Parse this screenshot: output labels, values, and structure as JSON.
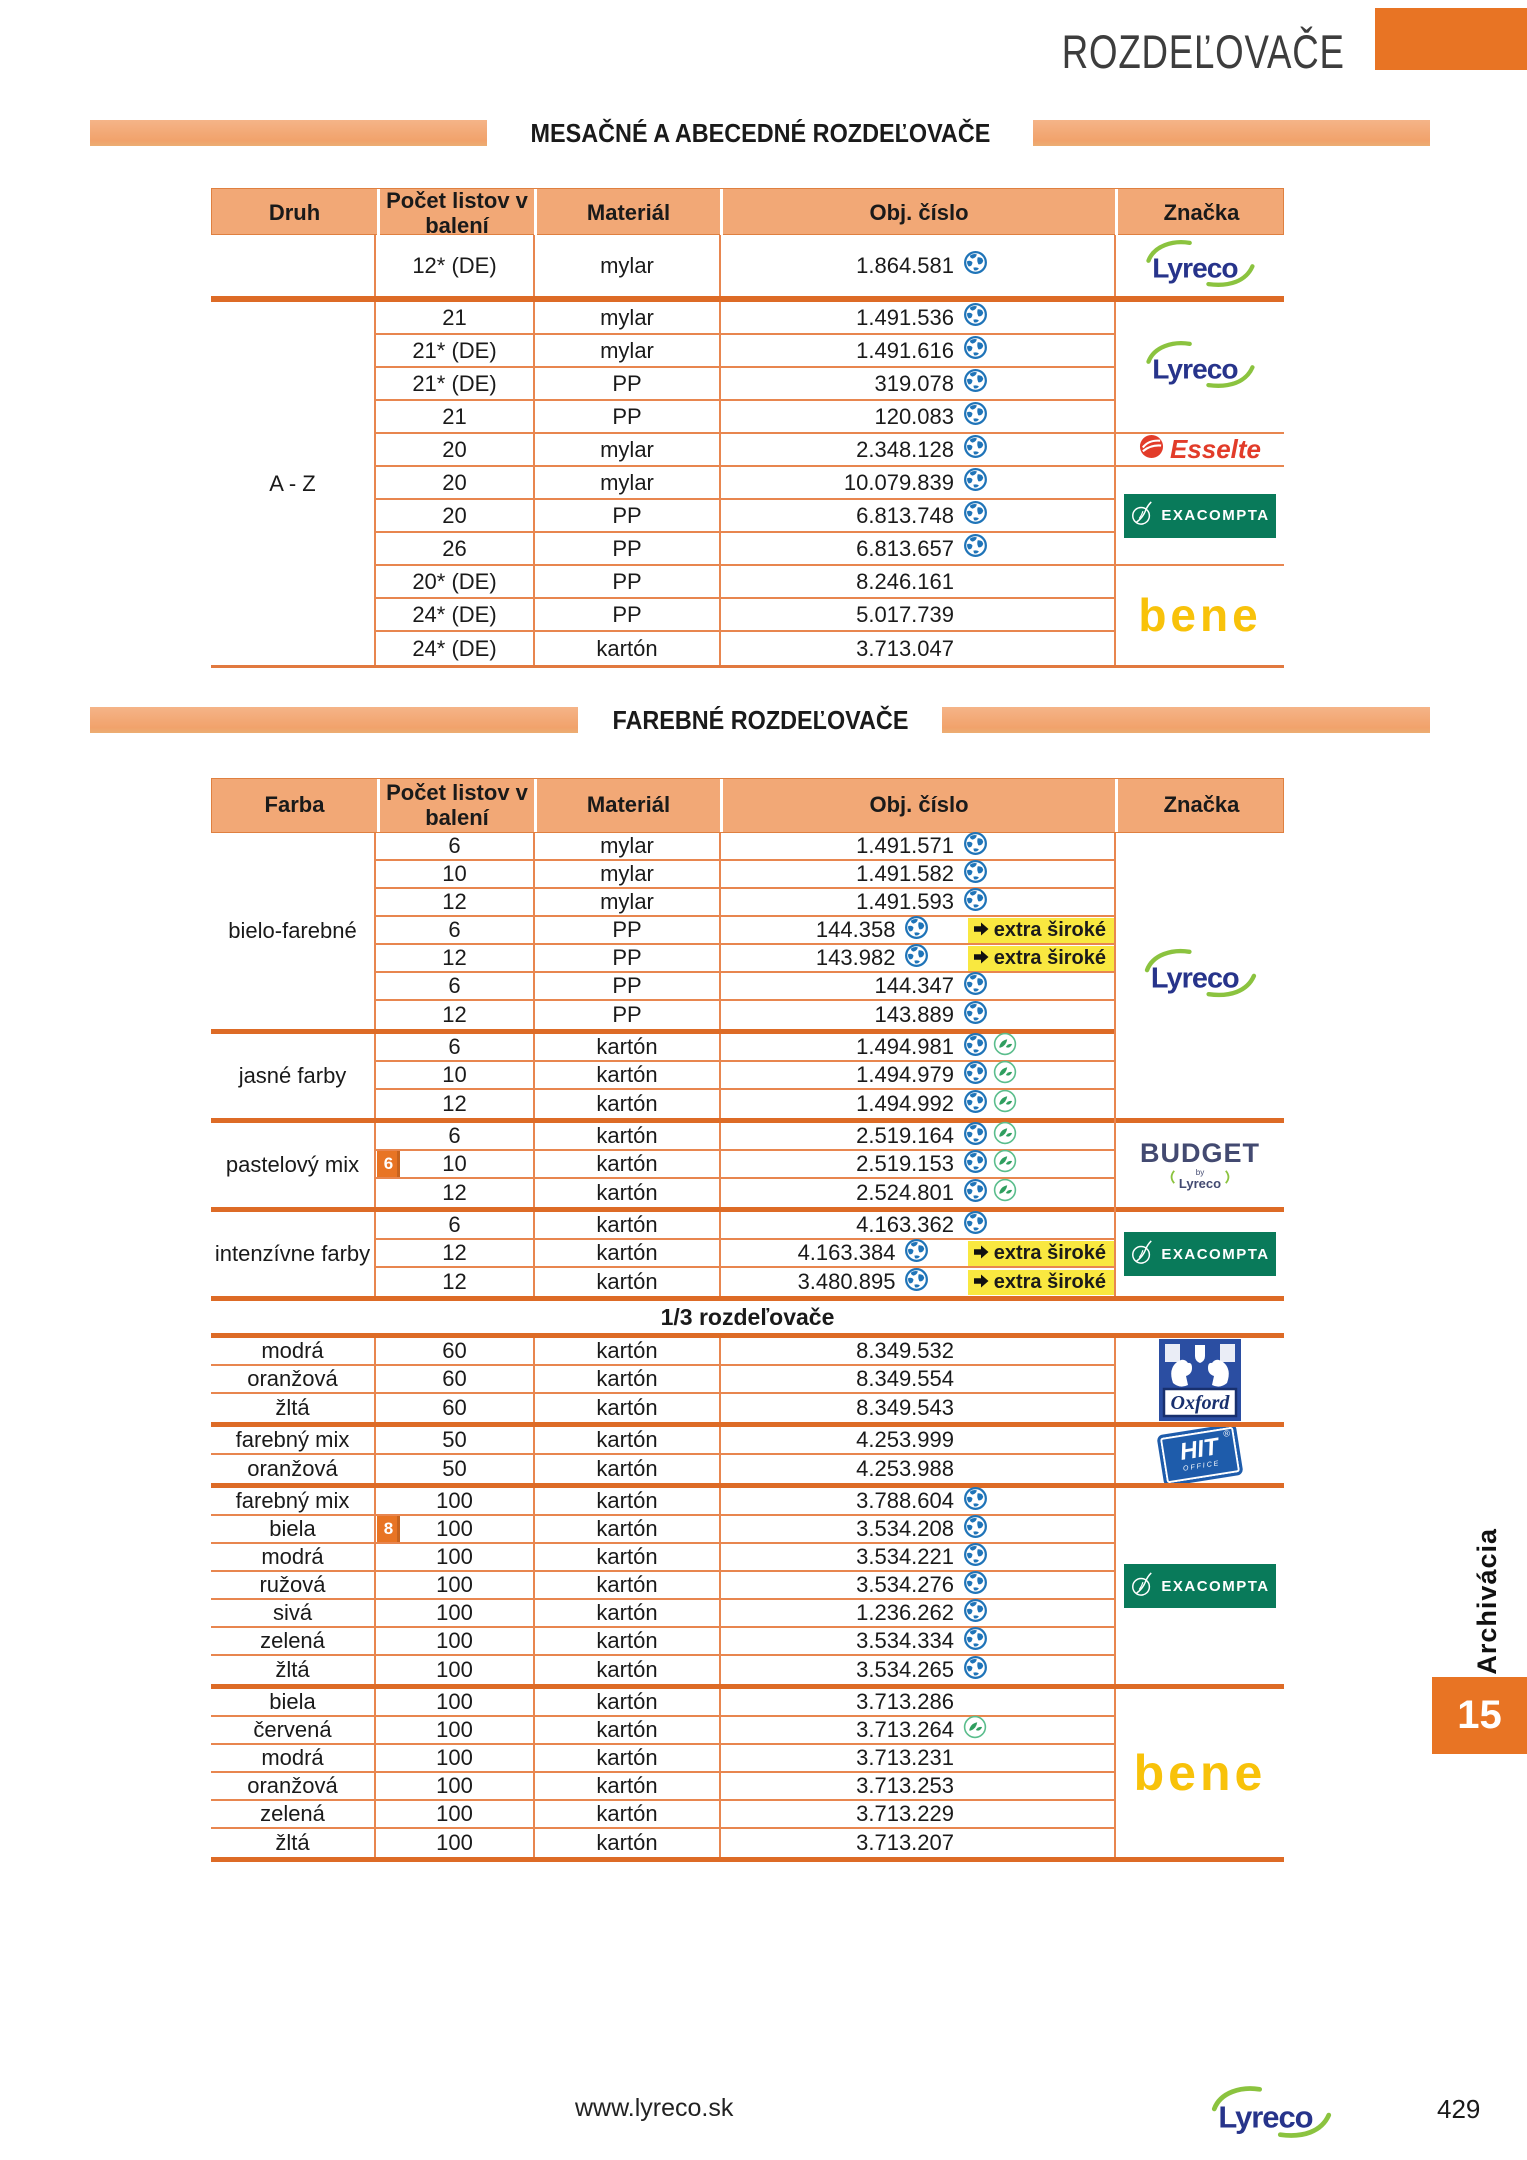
{
  "page": {
    "title": "ROZDEĽOVAČE"
  },
  "side": {
    "tab_label": "Archivácia",
    "chapter_number": "15"
  },
  "footer": {
    "website": "www.lyreco.sk",
    "page_number": "429",
    "logo": "Lyreco"
  },
  "colors": {
    "accent": "#e87424",
    "salmon": "#f2a876",
    "thin_line": "#e8864f",
    "thick_line": "#dd6b26",
    "flag_yellow": "#f9e840",
    "lyreco_navy": "#27348b",
    "lyreco_green": "#8bc33f",
    "esselte_red": "#e23c2a",
    "exacompta_green": "#097a5a",
    "bene_yellow": "#f8c20a",
    "budget_navy": "#434a71",
    "oxford_blue": "#2b4ea2",
    "hit_blue": "#1e5cab"
  },
  "icons": {
    "globe": "globe-icon",
    "leaf": "leaf-icon",
    "flag_arrow": "arrow-right-icon"
  },
  "logos": {
    "lyreco": "Lyreco",
    "esselte": "Esselte",
    "exacompta": "EXACOMPTA",
    "bene": "bene",
    "budget": "BUDGET",
    "budget_by": "by",
    "budget_sub": "Lyreco",
    "oxford": "Oxford",
    "hit": "HIT",
    "hit_sub": "OFFICE",
    "hit_reg": "®"
  },
  "table1": {
    "banner": "MESAČNÉ A ABECEDNÉ ROZDEĽOVAČE",
    "columns": [
      "Druh",
      "Počet listov v balení",
      "Materiál",
      "Obj. číslo",
      "Značka"
    ],
    "row_group_label": "A - Z",
    "intro_row": {
      "pocet": "12* (DE)",
      "material": "mylar",
      "obj": "1.864.581",
      "globe": true,
      "brand": "lyreco"
    },
    "rows": [
      {
        "pocet": "21",
        "material": "mylar",
        "obj": "1.491.536",
        "globe": true
      },
      {
        "pocet": "21* (DE)",
        "material": "mylar",
        "obj": "1.491.616",
        "globe": true
      },
      {
        "pocet": "21* (DE)",
        "material": "PP",
        "obj": "319.078",
        "globe": true
      },
      {
        "pocet": "21",
        "material": "PP",
        "obj": "120.083",
        "globe": true
      },
      {
        "pocet": "20",
        "material": "mylar",
        "obj": "2.348.128",
        "globe": true
      },
      {
        "pocet": "20",
        "material": "mylar",
        "obj": "10.079.839",
        "globe": true
      },
      {
        "pocet": "20",
        "material": "PP",
        "obj": "6.813.748",
        "globe": true
      },
      {
        "pocet": "26",
        "material": "PP",
        "obj": "6.813.657",
        "globe": true
      },
      {
        "pocet": "20* (DE)",
        "material": "PP",
        "obj": "8.246.161"
      },
      {
        "pocet": "24* (DE)",
        "material": "PP",
        "obj": "5.017.739"
      },
      {
        "pocet": "24* (DE)",
        "material": "kartón",
        "obj": "3.713.047"
      }
    ],
    "brand_cells": [
      {
        "brand": "lyreco",
        "rows": 4
      },
      {
        "brand": "esselte",
        "rows": 1
      },
      {
        "brand": "exacompta",
        "rows": 3
      },
      {
        "brand": "bene",
        "rows": 3
      }
    ]
  },
  "table2": {
    "banner": "FAREBNÉ ROZDEĽOVAČE",
    "columns": [
      "Farba",
      "Počet listov v balení",
      "Materiál",
      "Obj. číslo",
      "Značka"
    ],
    "section_header": "1/3 rozdeľovače",
    "band1_groups": [
      {
        "label": "bielo-farebné",
        "rows": [
          {
            "pocet": "6",
            "material": "mylar",
            "obj": "1.491.571",
            "globe": true
          },
          {
            "pocet": "10",
            "material": "mylar",
            "obj": "1.491.582",
            "globe": true
          },
          {
            "pocet": "12",
            "material": "mylar",
            "obj": "1.491.593",
            "globe": true
          },
          {
            "pocet": "6",
            "material": "PP",
            "obj": "144.358",
            "globe": true,
            "flag": "extra široké"
          },
          {
            "pocet": "12",
            "material": "PP",
            "obj": "143.982",
            "globe": true,
            "flag": "extra široké"
          },
          {
            "pocet": "6",
            "material": "PP",
            "obj": "144.347",
            "globe": true
          },
          {
            "pocet": "12",
            "material": "PP",
            "obj": "143.889",
            "globe": true
          }
        ]
      },
      {
        "label": "jasné farby",
        "rows": [
          {
            "pocet": "6",
            "material": "kartón",
            "obj": "1.494.981",
            "globe": true,
            "leaf": true
          },
          {
            "pocet": "10",
            "material": "kartón",
            "obj": "1.494.979",
            "globe": true,
            "leaf": true
          },
          {
            "pocet": "12",
            "material": "kartón",
            "obj": "1.494.992",
            "globe": true,
            "leaf": true
          }
        ]
      },
      {
        "label": "pastelový mix",
        "rows": [
          {
            "pocet": "6",
            "material": "kartón",
            "obj": "2.519.164",
            "globe": true,
            "leaf": true
          },
          {
            "pocet": "10",
            "material": "kartón",
            "obj": "2.519.153",
            "globe": true,
            "leaf": true,
            "badge": "6"
          },
          {
            "pocet": "12",
            "material": "kartón",
            "obj": "2.524.801",
            "globe": true,
            "leaf": true
          }
        ]
      },
      {
        "label": "intenzívne farby",
        "rows": [
          {
            "pocet": "6",
            "material": "kartón",
            "obj": "4.163.362",
            "globe": true
          },
          {
            "pocet": "12",
            "material": "kartón",
            "obj": "4.163.384",
            "globe": true,
            "flag": "extra široké"
          },
          {
            "pocet": "12",
            "material": "kartón",
            "obj": "3.480.895",
            "globe": true,
            "flag": "extra široké"
          }
        ]
      }
    ],
    "band1_brands": [
      {
        "brand": "lyreco",
        "spans": "bielo-farebné + jasné farby"
      },
      {
        "brand": "budget",
        "spans": "pastelový mix"
      },
      {
        "brand": "exacompta",
        "spans": "intenzívne farby"
      }
    ],
    "band2_groups": [
      {
        "brand": "oxford",
        "rows": [
          {
            "farba": "modrá",
            "pocet": "60",
            "material": "kartón",
            "obj": "8.349.532"
          },
          {
            "farba": "oranžová",
            "pocet": "60",
            "material": "kartón",
            "obj": "8.349.554"
          },
          {
            "farba": "žltá",
            "pocet": "60",
            "material": "kartón",
            "obj": "8.349.543"
          }
        ]
      },
      {
        "brand": "hit",
        "rows": [
          {
            "farba": "farebný mix",
            "pocet": "50",
            "material": "kartón",
            "obj": "4.253.999"
          },
          {
            "farba": "oranžová",
            "pocet": "50",
            "material": "kartón",
            "obj": "4.253.988"
          }
        ]
      },
      {
        "brand": "exacompta",
        "rows": [
          {
            "farba": "farebný mix",
            "pocet": "100",
            "material": "kartón",
            "obj": "3.788.604",
            "globe": true
          },
          {
            "farba": "biela",
            "pocet": "100",
            "material": "kartón",
            "obj": "3.534.208",
            "globe": true,
            "badge": "8"
          },
          {
            "farba": "modrá",
            "pocet": "100",
            "material": "kartón",
            "obj": "3.534.221",
            "globe": true
          },
          {
            "farba": "ružová",
            "pocet": "100",
            "material": "kartón",
            "obj": "3.534.276",
            "globe": true
          },
          {
            "farba": "sivá",
            "pocet": "100",
            "material": "kartón",
            "obj": "1.236.262",
            "globe": true
          },
          {
            "farba": "zelená",
            "pocet": "100",
            "material": "kartón",
            "obj": "3.534.334",
            "globe": true
          },
          {
            "farba": "žltá",
            "pocet": "100",
            "material": "kartón",
            "obj": "3.534.265",
            "globe": true
          }
        ]
      },
      {
        "brand": "bene",
        "rows": [
          {
            "farba": "biela",
            "pocet": "100",
            "material": "kartón",
            "obj": "3.713.286"
          },
          {
            "farba": "červená",
            "pocet": "100",
            "material": "kartón",
            "obj": "3.713.264",
            "leaf": true
          },
          {
            "farba": "modrá",
            "pocet": "100",
            "material": "kartón",
            "obj": "3.713.231"
          },
          {
            "farba": "oranžová",
            "pocet": "100",
            "material": "kartón",
            "obj": "3.713.253"
          },
          {
            "farba": "zelená",
            "pocet": "100",
            "material": "kartón",
            "obj": "3.713.229"
          },
          {
            "farba": "žltá",
            "pocet": "100",
            "material": "kartón",
            "obj": "3.713.207"
          }
        ]
      }
    ]
  }
}
